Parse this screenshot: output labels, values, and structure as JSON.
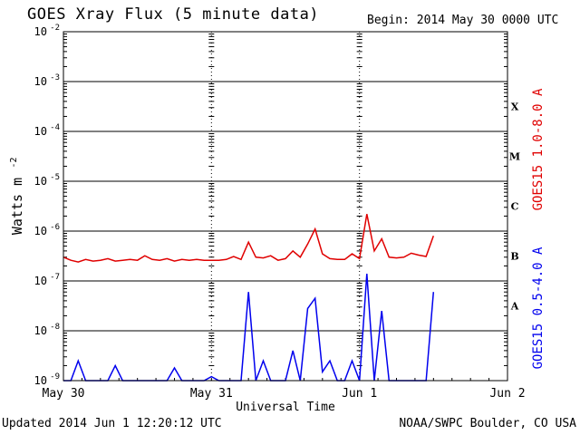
{
  "header": {
    "title": "GOES Xray Flux (5 minute data)",
    "begin": "Begin:  2014 May 30 0000 UTC"
  },
  "footer": {
    "updated": "Updated 2014 Jun  1 12:20:12 UTC",
    "credit": "NOAA/SWPC Boulder, CO USA"
  },
  "colors": {
    "long_channel": "#e00000",
    "short_channel": "#0000ee",
    "grid": "#000000"
  },
  "chart_data": {
    "type": "line",
    "title": "GOES Xray Flux (5 minute data)",
    "xlabel": "Universal Time",
    "ylabel": "Watts m",
    "ylabel_superscript": "-2",
    "yscale": "log",
    "ylim": [
      1e-09,
      0.01
    ],
    "xlim": [
      0,
      3
    ],
    "grid": true,
    "x_ticks": [
      {
        "value": 0,
        "label": "May 30"
      },
      {
        "value": 1,
        "label": "May 31"
      },
      {
        "value": 2,
        "label": "Jun 1"
      },
      {
        "value": 3,
        "label": "Jun 2"
      }
    ],
    "y_ticks": [
      {
        "exp": -2,
        "label": "10",
        "sup": "-2"
      },
      {
        "exp": -3,
        "label": "10",
        "sup": "-3"
      },
      {
        "exp": -4,
        "label": "10",
        "sup": "-4"
      },
      {
        "exp": -5,
        "label": "10",
        "sup": "-5"
      },
      {
        "exp": -6,
        "label": "10",
        "sup": "-6"
      },
      {
        "exp": -7,
        "label": "10",
        "sup": "-7"
      },
      {
        "exp": -8,
        "label": "10",
        "sup": "-8"
      },
      {
        "exp": -9,
        "label": "10",
        "sup": "-9"
      }
    ],
    "flare_classes": [
      {
        "label": "X",
        "exp": -3.5
      },
      {
        "label": "M",
        "exp": -4.5
      },
      {
        "label": "C",
        "exp": -5.5
      },
      {
        "label": "B",
        "exp": -6.5
      },
      {
        "label": "A",
        "exp": -7.5
      }
    ],
    "series": [
      {
        "name": "GOES15 1.0-8.0 A",
        "color": "#e00000",
        "x": [
          0.0,
          0.05,
          0.1,
          0.15,
          0.2,
          0.25,
          0.3,
          0.35,
          0.4,
          0.45,
          0.5,
          0.55,
          0.6,
          0.65,
          0.7,
          0.75,
          0.8,
          0.85,
          0.9,
          0.95,
          1.0,
          1.05,
          1.1,
          1.15,
          1.2,
          1.25,
          1.3,
          1.35,
          1.4,
          1.45,
          1.5,
          1.55,
          1.6,
          1.65,
          1.7,
          1.75,
          1.8,
          1.85,
          1.9,
          1.95,
          2.0,
          2.05,
          2.1,
          2.15,
          2.2,
          2.25,
          2.3,
          2.35,
          2.4,
          2.45,
          2.5
        ],
        "y": [
          3e-07,
          2.6e-07,
          2.4e-07,
          2.7e-07,
          2.5e-07,
          2.6e-07,
          2.8e-07,
          2.5e-07,
          2.6e-07,
          2.7e-07,
          2.6e-07,
          3.2e-07,
          2.7e-07,
          2.6e-07,
          2.8e-07,
          2.5e-07,
          2.7e-07,
          2.6e-07,
          2.7e-07,
          2.6e-07,
          2.6e-07,
          2.6e-07,
          2.7e-07,
          3.1e-07,
          2.7e-07,
          6e-07,
          3e-07,
          2.9e-07,
          3.2e-07,
          2.6e-07,
          2.8e-07,
          4e-07,
          3e-07,
          5.5e-07,
          1.1e-06,
          3.5e-07,
          2.8e-07,
          2.7e-07,
          2.7e-07,
          3.5e-07,
          2.8e-07,
          2.2e-06,
          4e-07,
          7e-07,
          3e-07,
          2.9e-07,
          3e-07,
          3.6e-07,
          3.3e-07,
          3.1e-07,
          8e-07
        ]
      },
      {
        "name": "GOES15 0.5-4.0 A",
        "color": "#0000ee",
        "x": [
          0.0,
          0.05,
          0.1,
          0.15,
          0.2,
          0.25,
          0.3,
          0.35,
          0.4,
          0.45,
          0.5,
          0.55,
          0.6,
          0.65,
          0.7,
          0.75,
          0.8,
          0.85,
          0.9,
          0.95,
          1.0,
          1.05,
          1.1,
          1.15,
          1.2,
          1.25,
          1.3,
          1.35,
          1.4,
          1.45,
          1.5,
          1.55,
          1.6,
          1.65,
          1.7,
          1.75,
          1.8,
          1.85,
          1.9,
          1.95,
          2.0,
          2.05,
          2.1,
          2.15,
          2.2,
          2.25,
          2.3,
          2.35,
          2.4,
          2.45,
          2.5
        ],
        "y": [
          1e-09,
          1e-09,
          2.5e-09,
          1e-09,
          1e-09,
          1e-09,
          1e-09,
          2e-09,
          1e-09,
          1e-09,
          1e-09,
          1e-09,
          1e-09,
          1e-09,
          1e-09,
          1.8e-09,
          1e-09,
          1e-09,
          1e-09,
          1e-09,
          1.2e-09,
          1e-09,
          1e-09,
          1e-09,
          1e-09,
          6e-08,
          1e-09,
          2.5e-09,
          1e-09,
          1e-09,
          1e-09,
          4e-09,
          1e-09,
          2.8e-08,
          4.5e-08,
          1.5e-09,
          2.5e-09,
          1e-09,
          1e-09,
          2.5e-09,
          1e-09,
          1.4e-07,
          1e-09,
          2.5e-08,
          1e-09,
          1e-09,
          1e-09,
          1e-09,
          1e-09,
          1e-09,
          6e-08
        ]
      }
    ]
  }
}
